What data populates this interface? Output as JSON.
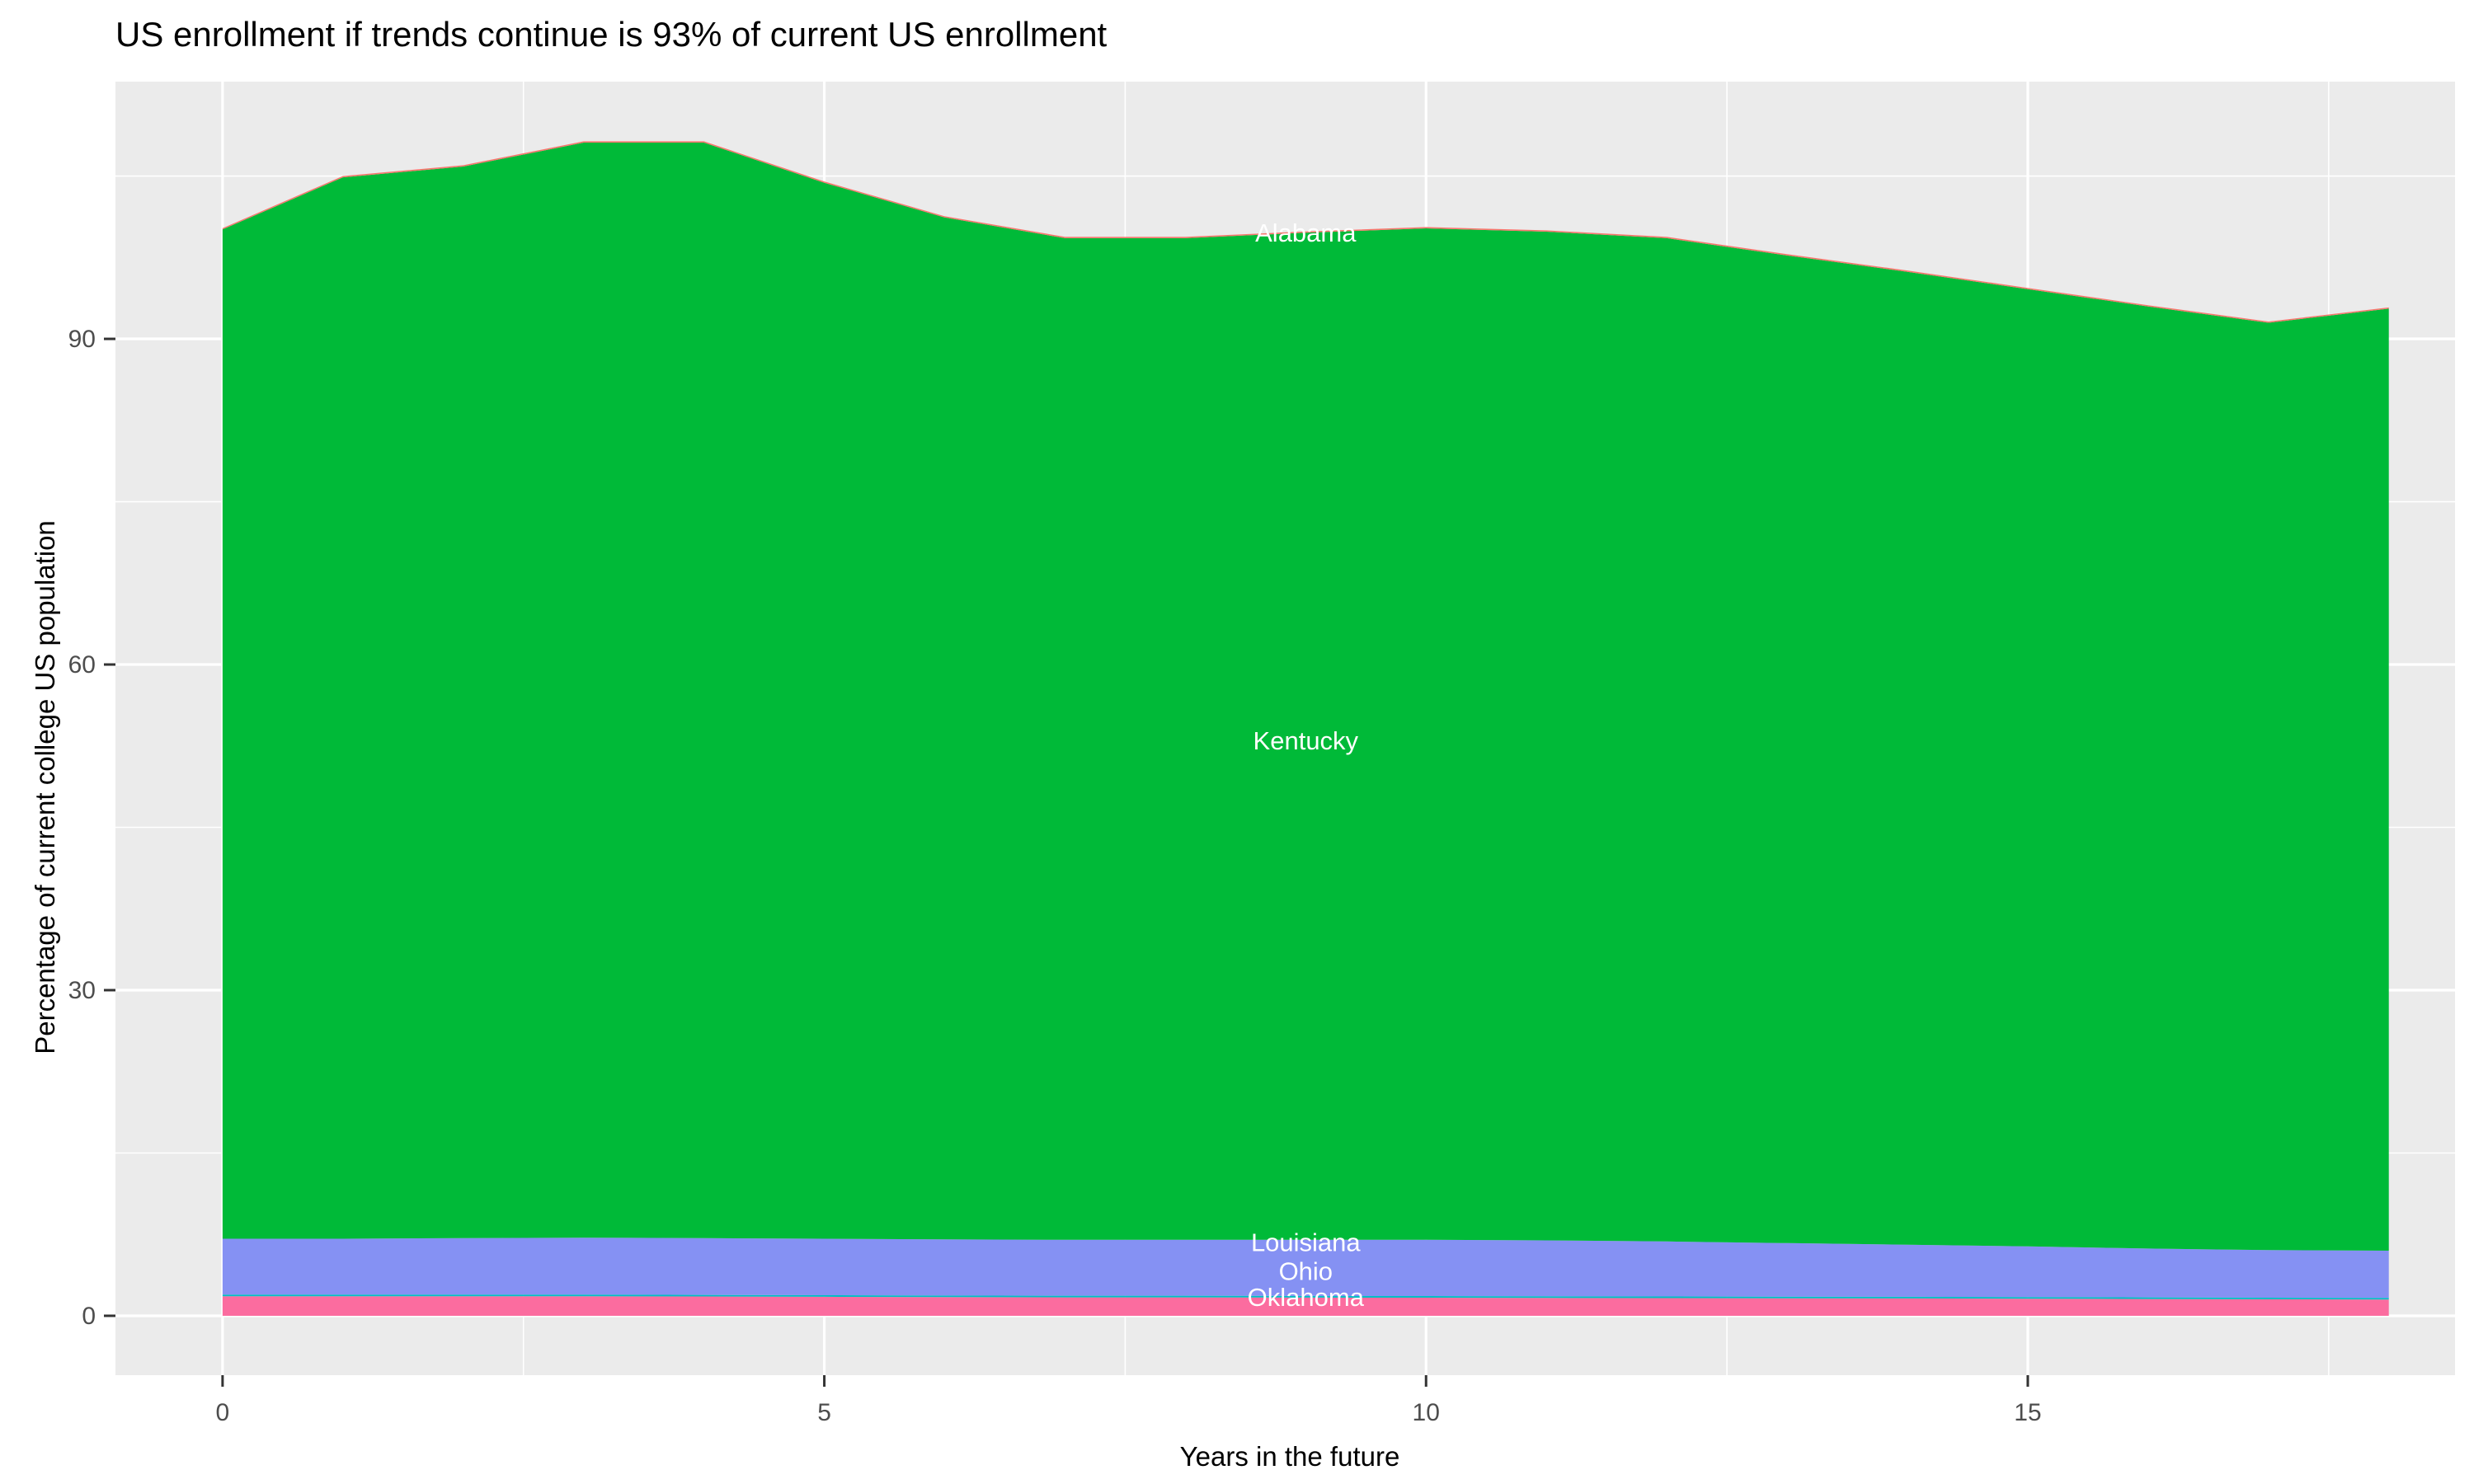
{
  "title": "US enrollment if trends continue is 93% of current US enrollment",
  "chart_data": {
    "type": "area",
    "stacked": true,
    "title": "US enrollment if trends continue is 93% of current US enrollment",
    "xlabel": "Years in the future",
    "ylabel": "Percentage of current college US population",
    "x": [
      0,
      1,
      2,
      3,
      4,
      5,
      6,
      7,
      8,
      9,
      10,
      11,
      12,
      13,
      14,
      15,
      16,
      17,
      18
    ],
    "series": [
      {
        "name": "Oklahoma",
        "color": "#FB6C9F",
        "values": [
          1.8,
          1.8,
          1.8,
          1.8,
          1.78,
          1.75,
          1.72,
          1.7,
          1.7,
          1.68,
          1.67,
          1.65,
          1.63,
          1.62,
          1.6,
          1.58,
          1.55,
          1.52,
          1.5
        ]
      },
      {
        "name": "Ohio",
        "color": "#00BFC4",
        "values": [
          0.15,
          0.15,
          0.15,
          0.15,
          0.15,
          0.15,
          0.15,
          0.15,
          0.15,
          0.15,
          0.15,
          0.15,
          0.15,
          0.15,
          0.15,
          0.15,
          0.15,
          0.15,
          0.15
        ]
      },
      {
        "name": "Louisiana",
        "color": "#8591F3",
        "values": [
          5.15,
          5.15,
          5.2,
          5.25,
          5.22,
          5.2,
          5.18,
          5.15,
          5.15,
          5.17,
          5.18,
          5.15,
          5.07,
          4.93,
          4.8,
          4.67,
          4.5,
          4.38,
          4.35
        ]
      },
      {
        "name": "Kentucky",
        "color": "#00BA38",
        "values": [
          92.98,
          97.78,
          98.73,
          100.88,
          100.93,
          97.28,
          94.13,
          92.28,
          92.28,
          92.78,
          93.18,
          92.93,
          92.43,
          90.98,
          89.63,
          88.18,
          86.78,
          85.43,
          86.78
        ]
      },
      {
        "name": "Alabama",
        "color": "#F8766D",
        "values": [
          0.12,
          0.12,
          0.12,
          0.12,
          0.12,
          0.12,
          0.12,
          0.12,
          0.12,
          0.12,
          0.12,
          0.12,
          0.12,
          0.12,
          0.12,
          0.12,
          0.12,
          0.12,
          0.12
        ]
      }
    ],
    "stack_totals": [
      100.2,
      105.0,
      106.0,
      108.2,
      108.2,
      104.5,
      101.3,
      99.4,
      99.4,
      99.9,
      100.3,
      100.0,
      99.4,
      97.8,
      96.3,
      94.7,
      93.1,
      91.6,
      92.9
    ],
    "annotations": [
      {
        "text": "Alabama",
        "x": 9,
        "y": 99.8,
        "color": "#FFFFFF"
      },
      {
        "text": "Kentucky",
        "x": 9,
        "y": 53.0,
        "color": "#FFFFFF"
      },
      {
        "text": "Louisiana",
        "x": 9,
        "y": 6.8,
        "color": "#FFFFFF"
      },
      {
        "text": "Ohio",
        "x": 9,
        "y": 4.15,
        "color": "#FFFFFF"
      },
      {
        "text": "Oklahoma",
        "x": 9,
        "y": 1.75,
        "color": "#FFFFFF"
      }
    ],
    "x_ticks": [
      0,
      5,
      10,
      15
    ],
    "y_ticks": [
      0,
      30,
      60,
      90
    ],
    "x_minor_ticks": [
      2.5,
      7.5,
      12.5,
      17.5
    ],
    "y_minor_ticks": [
      15,
      45,
      75,
      105
    ],
    "xlim": [
      -0.89,
      18.55
    ],
    "ylim": [
      -5.47,
      113.7
    ],
    "grid": true,
    "legend": "none",
    "panel_bg": "#EBEBEB",
    "grid_color": "#FFFFFF",
    "tick_mark_color": "#333333",
    "tick_label_color": "#4D4D4D",
    "axis_title_color": "#000000"
  }
}
